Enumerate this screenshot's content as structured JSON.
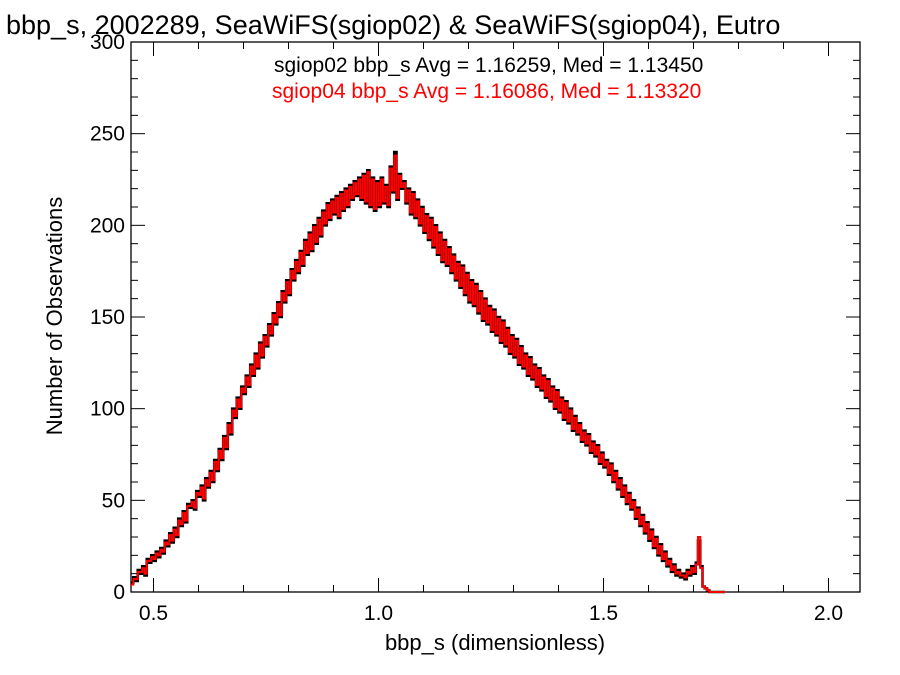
{
  "chart_data": {
    "type": "histogram-step",
    "title": "bbp_s, 2002289, SeaWiFS(sgiop02) & SeaWiFS(sgiop04), Eutro",
    "xlabel": "bbp_s (dimensionless)",
    "ylabel": "Number of Observations",
    "xlim": [
      0.45,
      2.07
    ],
    "ylim": [
      0,
      300
    ],
    "x_ticks": [
      {
        "value": 0.5,
        "label": "0.5"
      },
      {
        "value": 1.0,
        "label": "1.0"
      },
      {
        "value": 1.5,
        "label": "1.5"
      },
      {
        "value": 2.0,
        "label": "2.0"
      }
    ],
    "y_ticks": [
      {
        "value": 0,
        "label": "0"
      },
      {
        "value": 50,
        "label": "50"
      },
      {
        "value": 100,
        "label": "100"
      },
      {
        "value": 150,
        "label": "150"
      },
      {
        "value": 200,
        "label": "200"
      },
      {
        "value": 250,
        "label": "250"
      },
      {
        "value": 300,
        "label": "300"
      }
    ],
    "bin_start": 0.45,
    "bin_width": 0.005,
    "series": [
      {
        "color": "#000000",
        "legend": "sgiop02 bbp_s Avg = 1.16259, Med = 1.13450",
        "values": [
          5,
          8,
          6,
          12,
          10,
          14,
          9,
          18,
          16,
          20,
          17,
          22,
          19,
          24,
          21,
          28,
          25,
          32,
          27,
          35,
          30,
          40,
          36,
          44,
          38,
          48,
          46,
          50,
          45,
          55,
          52,
          58,
          50,
          62,
          57,
          66,
          60,
          72,
          66,
          78,
          72,
          85,
          78,
          92,
          86,
          100,
          95,
          106,
          100,
          112,
          108,
          118,
          112,
          124,
          118,
          130,
          122,
          136,
          128,
          140,
          134,
          146,
          140,
          152,
          146,
          158,
          150,
          164,
          158,
          170,
          162,
          176,
          170,
          181,
          174,
          186,
          178,
          192,
          184,
          196,
          186,
          200,
          190,
          204,
          194,
          208,
          200,
          212,
          203,
          214,
          206,
          216,
          204,
          218,
          208,
          220,
          210,
          222,
          214,
          224,
          216,
          226,
          214,
          228,
          212,
          230,
          210,
          226,
          208,
          224,
          210,
          226,
          212,
          222,
          210,
          232,
          218,
          240,
          214,
          228,
          220,
          224,
          212,
          220,
          206,
          218,
          204,
          214,
          200,
          210,
          196,
          206,
          192,
          204,
          188,
          200,
          184,
          196,
          180,
          192,
          178,
          188,
          174,
          184,
          170,
          180,
          166,
          178,
          162,
          174,
          158,
          170,
          156,
          168,
          152,
          164,
          148,
          160,
          146,
          156,
          142,
          154,
          140,
          150,
          136,
          148,
          134,
          144,
          130,
          140,
          128,
          138,
          124,
          134,
          122,
          130,
          118,
          128,
          116,
          124,
          112,
          122,
          110,
          118,
          106,
          116,
          104,
          112,
          100,
          110,
          98,
          106,
          94,
          104,
          92,
          100,
          88,
          96,
          86,
          92,
          82,
          88,
          80,
          86,
          76,
          82,
          74,
          80,
          70,
          76,
          68,
          72,
          64,
          70,
          60,
          66,
          56,
          62,
          52,
          58,
          48,
          54,
          45,
          50,
          40,
          46,
          36,
          42,
          32,
          38,
          28,
          34,
          24,
          30,
          20,
          26,
          17,
          22,
          14,
          18,
          11,
          15,
          9,
          12,
          8,
          10,
          7,
          12,
          9,
          14,
          10,
          16,
          28,
          14,
          3,
          2,
          1,
          0,
          0,
          0,
          0,
          0,
          0,
          0
        ]
      },
      {
        "color": "#ff0000",
        "legend": "sgiop04 bbp_s Avg = 1.16086, Med = 1.13320",
        "values": [
          4,
          7,
          7,
          11,
          11,
          13,
          10,
          17,
          17,
          19,
          18,
          21,
          20,
          23,
          22,
          27,
          26,
          31,
          28,
          34,
          31,
          39,
          37,
          43,
          39,
          47,
          47,
          49,
          46,
          54,
          53,
          57,
          51,
          61,
          58,
          65,
          61,
          71,
          67,
          77,
          73,
          84,
          79,
          91,
          87,
          99,
          96,
          105,
          101,
          111,
          109,
          117,
          113,
          123,
          119,
          129,
          123,
          135,
          129,
          139,
          135,
          145,
          141,
          151,
          147,
          157,
          151,
          163,
          159,
          169,
          163,
          175,
          171,
          180,
          175,
          185,
          179,
          191,
          185,
          195,
          187,
          199,
          191,
          203,
          195,
          207,
          201,
          211,
          204,
          213,
          207,
          215,
          205,
          217,
          209,
          219,
          211,
          221,
          215,
          223,
          217,
          225,
          215,
          227,
          213,
          229,
          211,
          225,
          209,
          223,
          211,
          225,
          213,
          221,
          211,
          231,
          219,
          238,
          215,
          227,
          221,
          223,
          213,
          219,
          207,
          217,
          205,
          213,
          201,
          209,
          197,
          205,
          193,
          203,
          189,
          199,
          185,
          195,
          181,
          191,
          179,
          187,
          175,
          183,
          171,
          179,
          167,
          177,
          163,
          173,
          159,
          169,
          157,
          167,
          153,
          163,
          149,
          159,
          147,
          155,
          143,
          153,
          141,
          149,
          137,
          147,
          135,
          143,
          131,
          139,
          129,
          137,
          125,
          133,
          123,
          129,
          119,
          127,
          117,
          123,
          113,
          121,
          111,
          117,
          107,
          115,
          105,
          111,
          101,
          109,
          99,
          105,
          95,
          103,
          93,
          99,
          89,
          95,
          87,
          91,
          83,
          87,
          81,
          85,
          77,
          81,
          75,
          79,
          71,
          75,
          69,
          71,
          65,
          69,
          61,
          65,
          57,
          61,
          53,
          57,
          49,
          53,
          46,
          49,
          41,
          45,
          37,
          41,
          33,
          37,
          29,
          33,
          25,
          29,
          21,
          25,
          18,
          21,
          15,
          17,
          12,
          14,
          10,
          11,
          9,
          9,
          8,
          11,
          10,
          13,
          11,
          15,
          30,
          13,
          3,
          2,
          1,
          0,
          0,
          0,
          0,
          0,
          0,
          0
        ]
      }
    ]
  }
}
